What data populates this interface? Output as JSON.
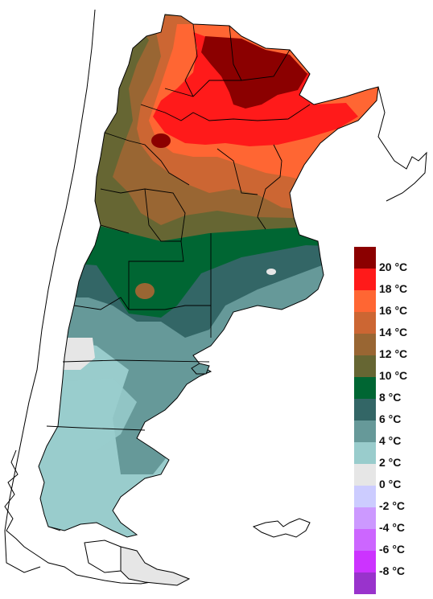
{
  "map": {
    "regions": [
      {
        "name": "northeast-hot-core",
        "color": "#8b0000"
      },
      {
        "name": "north-warm-belt",
        "color": "#ff1a1a"
      },
      {
        "name": "central-warm-belt",
        "color": "#ff6633"
      },
      {
        "name": "pampas-mild",
        "color": "#cc6633"
      },
      {
        "name": "cuyo-andes",
        "color": "#996633"
      },
      {
        "name": "andes-cool",
        "color": "#666633"
      },
      {
        "name": "north-patagonia",
        "color": "#006633"
      },
      {
        "name": "patagonia-central",
        "color": "#336666"
      },
      {
        "name": "patagonia-south",
        "color": "#669999"
      },
      {
        "name": "patagonia-cold",
        "color": "#99cccc"
      }
    ]
  },
  "legend": {
    "items": [
      {
        "label": "20 °C",
        "color": "#8b0000"
      },
      {
        "label": "18 °C",
        "color": "#ff1a1a"
      },
      {
        "label": "16 °C",
        "color": "#ff6633"
      },
      {
        "label": "14 °C",
        "color": "#cc6633"
      },
      {
        "label": "12 °C",
        "color": "#996633"
      },
      {
        "label": "10 °C",
        "color": "#666633"
      },
      {
        "label": "8 °C",
        "color": "#006633"
      },
      {
        "label": "6 °C",
        "color": "#336666"
      },
      {
        "label": "4 °C",
        "color": "#669999"
      },
      {
        "label": "2 °C",
        "color": "#99cccc"
      },
      {
        "label": "0 °C",
        "color": "#e6e6e6"
      },
      {
        "label": "-2 °C",
        "color": "#ccccff"
      },
      {
        "label": "-4 °C",
        "color": "#cc99ff"
      },
      {
        "label": "-6 °C",
        "color": "#cc66ff"
      },
      {
        "label": "-8 °C",
        "color": "#cc33ff"
      },
      {
        "label": "",
        "color": "#9933cc"
      }
    ]
  }
}
